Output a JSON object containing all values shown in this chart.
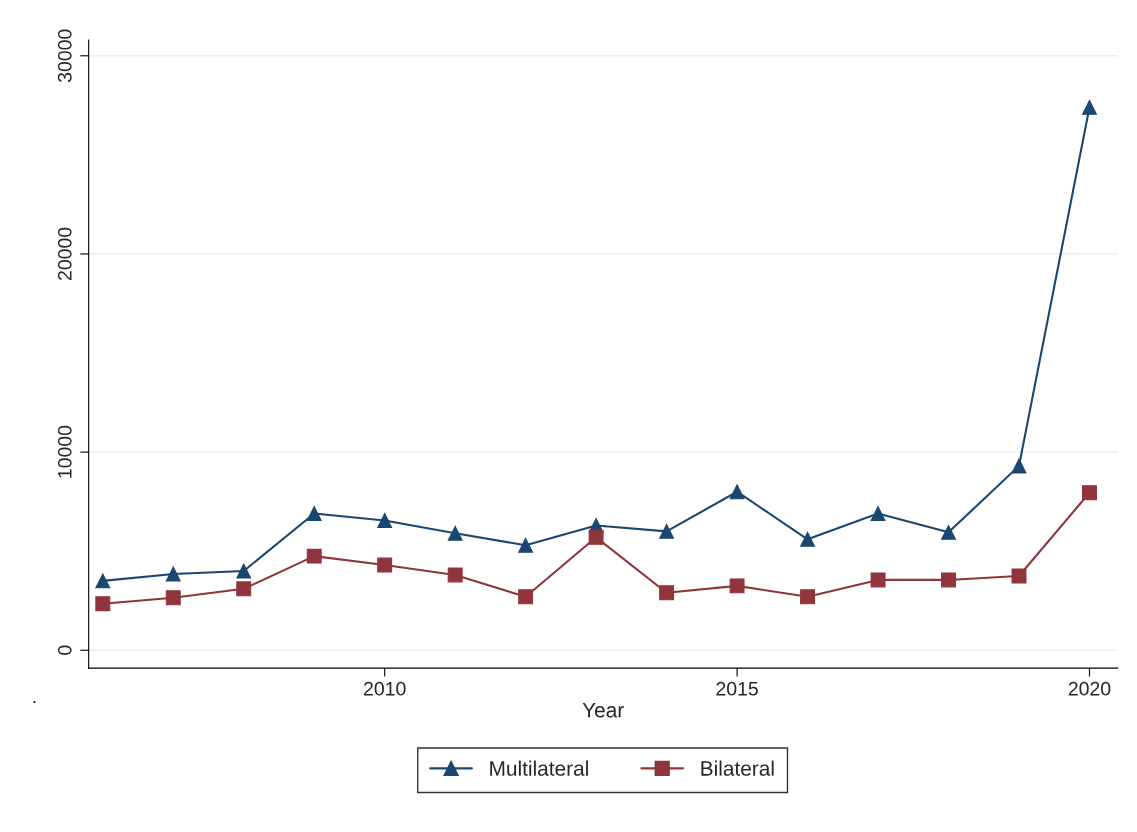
{
  "chart_data": {
    "type": "line",
    "xlabel": "Year",
    "x": [
      2006,
      2007,
      2008,
      2009,
      2010,
      2011,
      2012,
      2013,
      2014,
      2015,
      2016,
      2017,
      2018,
      2019,
      2020
    ],
    "series": [
      {
        "name": "Multilateral",
        "color": "#1a476f",
        "marker": "triangle",
        "values": [
          3500,
          3850,
          4000,
          6900,
          6550,
          5900,
          5300,
          6300,
          6000,
          8000,
          5600,
          6900,
          5950,
          9300,
          27400
        ]
      },
      {
        "name": "Bilateral",
        "color": "#90353b",
        "marker": "square",
        "values": [
          2350,
          2650,
          3100,
          4750,
          4300,
          3800,
          2700,
          5700,
          2900,
          3250,
          2700,
          3550,
          3550,
          3750,
          7950
        ]
      }
    ],
    "xlim": [
      2005.8,
      2020.4
    ],
    "xticks": [
      2010,
      2015,
      2020
    ],
    "ylim": [
      -900,
      30800
    ],
    "yticks": [
      0,
      10000,
      20000,
      30000
    ],
    "grid": "y",
    "legend": "bottom",
    "line_style": "solid",
    "annotations": [
      "."
    ]
  }
}
